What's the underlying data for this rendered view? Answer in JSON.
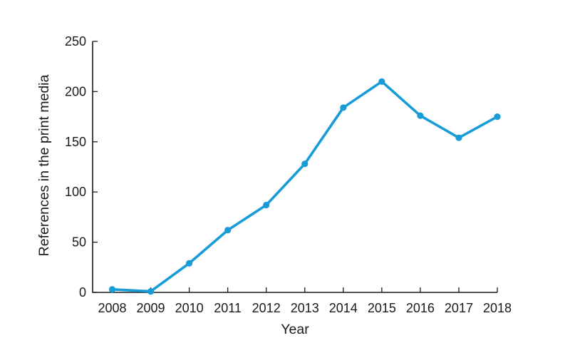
{
  "chart_data": {
    "type": "line",
    "title": "",
    "xlabel": "Year",
    "ylabel": "References in the print media",
    "categories": [
      2008,
      2009,
      2010,
      2011,
      2012,
      2013,
      2014,
      2015,
      2016,
      2017,
      2018
    ],
    "series": [
      {
        "name": "References in the print media",
        "values": [
          3,
          1,
          29,
          62,
          87,
          128,
          184,
          210,
          176,
          154,
          175
        ]
      }
    ],
    "xlim": [
      2008,
      2018
    ],
    "ylim": [
      0,
      250
    ],
    "yticks": [
      0,
      50,
      100,
      150,
      200,
      250
    ],
    "xticks": [
      2008,
      2009,
      2010,
      2011,
      2012,
      2013,
      2014,
      2015,
      2016,
      2017,
      2018
    ],
    "grid": false,
    "legend_position": "none",
    "tick_direction": "in",
    "marker": "circle",
    "colors": {
      "line": "#189cd8",
      "marker": "#189cd8",
      "axis": "#1a1a1a",
      "text": "#1a1a1a",
      "background": "#ffffff"
    }
  }
}
